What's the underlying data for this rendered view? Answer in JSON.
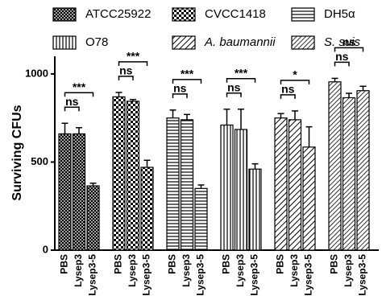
{
  "chart_data": {
    "type": "bar",
    "y_label": "Surviving CFUs",
    "categories": [
      "PBS",
      "Lysep3",
      "Lysep3-5"
    ],
    "ylim": [
      0,
      1100
    ],
    "yticks": [
      0,
      500,
      1000
    ],
    "series": [
      {
        "name": "ATCC25922",
        "pattern": "crosshatch",
        "color": "#000000",
        "values": [
          660,
          660,
          365
        ],
        "errors": [
          60,
          35,
          15
        ],
        "significance": [
          "ns",
          "***"
        ]
      },
      {
        "name": "CVCC1418",
        "pattern": "checker",
        "color": "#000000",
        "values": [
          870,
          845,
          470
        ],
        "errors": [
          25,
          10,
          40
        ],
        "significance": [
          "ns",
          "***"
        ]
      },
      {
        "name": "DH5α",
        "pattern": "hlines",
        "color": "#000000",
        "values": [
          750,
          740,
          350
        ],
        "errors": [
          45,
          30,
          20
        ],
        "significance": [
          "ns",
          "***"
        ]
      },
      {
        "name": "O78",
        "pattern": "vlines",
        "color": "#000000",
        "values": [
          710,
          685,
          460
        ],
        "errors": [
          90,
          115,
          30
        ],
        "significance": [
          "ns",
          "***"
        ]
      },
      {
        "name": "A. baumannii",
        "italic": true,
        "pattern": "diag",
        "color": "#000000",
        "values": [
          750,
          740,
          585
        ],
        "errors": [
          25,
          50,
          115
        ],
        "significance": [
          "ns",
          "*"
        ]
      },
      {
        "name": "S. suis",
        "italic": true,
        "pattern": "diag-dense",
        "color": "#000000",
        "values": [
          955,
          865,
          905
        ],
        "errors": [
          20,
          25,
          25
        ],
        "significance": [
          "ns",
          "ns"
        ]
      }
    ]
  }
}
